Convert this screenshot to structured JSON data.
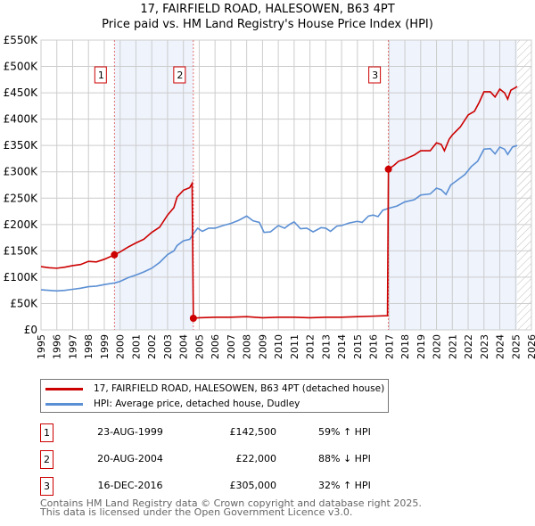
{
  "chart_data": {
    "type": "line",
    "title": "17, FAIRFIELD ROAD, HALESOWEN, B63 4PT",
    "subtitle": "Price paid vs. HM Land Registry's House Price Index (HPI)",
    "xlim": [
      1995,
      2026
    ],
    "ylim": [
      0,
      550000
    ],
    "x_ticks": [
      "1995",
      "1996",
      "1997",
      "1998",
      "1999",
      "2000",
      "2001",
      "2002",
      "2003",
      "2004",
      "2005",
      "2006",
      "2007",
      "2008",
      "2009",
      "2010",
      "2011",
      "2012",
      "2013",
      "2014",
      "2015",
      "2016",
      "2017",
      "2018",
      "2019",
      "2020",
      "2021",
      "2022",
      "2023",
      "2024",
      "2025",
      "2026"
    ],
    "y_ticks": [
      {
        "v": 0,
        "label": "£0"
      },
      {
        "v": 50000,
        "label": "£50K"
      },
      {
        "v": 100000,
        "label": "£100K"
      },
      {
        "v": 150000,
        "label": "£150K"
      },
      {
        "v": 200000,
        "label": "£200K"
      },
      {
        "v": 250000,
        "label": "£250K"
      },
      {
        "v": 300000,
        "label": "£300K"
      },
      {
        "v": 350000,
        "label": "£350K"
      },
      {
        "v": 400000,
        "label": "£400K"
      },
      {
        "v": 450000,
        "label": "£450K"
      },
      {
        "v": 500000,
        "label": "£500K"
      },
      {
        "v": 550000,
        "label": "£550K"
      }
    ],
    "grid": true,
    "shaded_ranges": [
      [
        1999.64,
        2004.63
      ],
      [
        2016.96,
        2025.1
      ]
    ],
    "future_hatch_from": 2025.1,
    "series": [
      {
        "name": "17, FAIRFIELD ROAD, HALESOWEN, B63 4PT (detached house)",
        "color": "#cc0000",
        "points": [
          [
            1995,
            120
          ],
          [
            1995.5,
            118
          ],
          [
            1996,
            117
          ],
          [
            1996.5,
            119
          ],
          [
            1997,
            122
          ],
          [
            1997.5,
            124
          ],
          [
            1998,
            130
          ],
          [
            1998.5,
            129
          ],
          [
            1999,
            134
          ],
          [
            1999.64,
            142.5
          ],
          [
            2000,
            148
          ],
          [
            2000.5,
            157
          ],
          [
            2001,
            165
          ],
          [
            2001.5,
            172
          ],
          [
            2002,
            185
          ],
          [
            2002.5,
            195
          ],
          [
            2003,
            218
          ],
          [
            2003.4,
            232
          ],
          [
            2003.6,
            252
          ],
          [
            2004,
            265
          ],
          [
            2004.4,
            270
          ],
          [
            2004.55,
            278
          ],
          [
            2004.63,
            22
          ],
          [
            2005,
            23
          ],
          [
            2006,
            24
          ],
          [
            2007,
            24
          ],
          [
            2008,
            25
          ],
          [
            2009,
            23
          ],
          [
            2010,
            24
          ],
          [
            2011,
            24
          ],
          [
            2012,
            23
          ],
          [
            2013,
            24
          ],
          [
            2014,
            24
          ],
          [
            2015,
            25
          ],
          [
            2016,
            26
          ],
          [
            2016.9,
            27
          ],
          [
            2016.96,
            305
          ],
          [
            2017.3,
            312
          ],
          [
            2017.6,
            320
          ],
          [
            2018,
            324
          ],
          [
            2018.6,
            332
          ],
          [
            2019,
            340
          ],
          [
            2019.6,
            340
          ],
          [
            2020,
            355
          ],
          [
            2020.3,
            352
          ],
          [
            2020.5,
            340
          ],
          [
            2020.8,
            362
          ],
          [
            2021,
            370
          ],
          [
            2021.5,
            385
          ],
          [
            2022,
            408
          ],
          [
            2022.4,
            415
          ],
          [
            2022.7,
            432
          ],
          [
            2023,
            452
          ],
          [
            2023.4,
            452
          ],
          [
            2023.7,
            442
          ],
          [
            2024,
            457
          ],
          [
            2024.3,
            450
          ],
          [
            2024.5,
            438
          ],
          [
            2024.7,
            455
          ],
          [
            2025,
            460
          ],
          [
            2025.1,
            462
          ]
        ]
      },
      {
        "name": "HPI: Average price, detached house, Dudley",
        "color": "#5b8fd4",
        "points": [
          [
            1995,
            76
          ],
          [
            1995.5,
            75
          ],
          [
            1996,
            74
          ],
          [
            1996.5,
            75
          ],
          [
            1997,
            77
          ],
          [
            1997.5,
            79
          ],
          [
            1998,
            82
          ],
          [
            1998.5,
            83
          ],
          [
            1999,
            86
          ],
          [
            1999.64,
            89
          ],
          [
            2000,
            92
          ],
          [
            2000.5,
            99
          ],
          [
            2001,
            104
          ],
          [
            2001.5,
            110
          ],
          [
            2002,
            117
          ],
          [
            2002.5,
            128
          ],
          [
            2003,
            143
          ],
          [
            2003.4,
            150
          ],
          [
            2003.6,
            160
          ],
          [
            2004,
            169
          ],
          [
            2004.4,
            172
          ],
          [
            2004.63,
            182
          ],
          [
            2004.9,
            193
          ],
          [
            2005.2,
            187
          ],
          [
            2005.6,
            193
          ],
          [
            2006,
            193
          ],
          [
            2006.5,
            198
          ],
          [
            2007,
            202
          ],
          [
            2007.5,
            208
          ],
          [
            2008,
            216
          ],
          [
            2008.4,
            207
          ],
          [
            2008.8,
            204
          ],
          [
            2009.1,
            185
          ],
          [
            2009.5,
            186
          ],
          [
            2010,
            198
          ],
          [
            2010.4,
            193
          ],
          [
            2010.7,
            200
          ],
          [
            2011,
            205
          ],
          [
            2011.4,
            192
          ],
          [
            2011.8,
            193
          ],
          [
            2012.2,
            186
          ],
          [
            2012.7,
            194
          ],
          [
            2013,
            193
          ],
          [
            2013.3,
            187
          ],
          [
            2013.7,
            197
          ],
          [
            2014,
            198
          ],
          [
            2014.5,
            203
          ],
          [
            2015,
            206
          ],
          [
            2015.3,
            204
          ],
          [
            2015.7,
            216
          ],
          [
            2016,
            218
          ],
          [
            2016.3,
            215
          ],
          [
            2016.6,
            227
          ],
          [
            2017,
            231
          ],
          [
            2017.5,
            235
          ],
          [
            2018,
            243
          ],
          [
            2018.6,
            247
          ],
          [
            2019,
            256
          ],
          [
            2019.6,
            258
          ],
          [
            2020,
            269
          ],
          [
            2020.3,
            266
          ],
          [
            2020.6,
            257
          ],
          [
            2020.9,
            275
          ],
          [
            2021.4,
            286
          ],
          [
            2021.8,
            295
          ],
          [
            2022.2,
            310
          ],
          [
            2022.6,
            320
          ],
          [
            2023,
            343
          ],
          [
            2023.4,
            344
          ],
          [
            2023.7,
            334
          ],
          [
            2024,
            347
          ],
          [
            2024.3,
            343
          ],
          [
            2024.5,
            333
          ],
          [
            2024.8,
            347
          ],
          [
            2025.1,
            350
          ]
        ]
      }
    ],
    "sales": [
      {
        "n": "1",
        "year": 1999.64,
        "value": 142.5
      },
      {
        "n": "2",
        "year": 2004.63,
        "value": 22
      },
      {
        "n": "3",
        "year": 2016.96,
        "value": 305
      }
    ]
  },
  "header": {
    "title": "17, FAIRFIELD ROAD, HALESOWEN, B63 4PT",
    "subtitle": "Price paid vs. HM Land Registry's House Price Index (HPI)"
  },
  "legend": {
    "red": "17, FAIRFIELD ROAD, HALESOWEN, B63 4PT (detached house)",
    "blue": "HPI: Average price, detached house, Dudley"
  },
  "transactions": [
    {
      "n": "1",
      "date": "23-AUG-1999",
      "price": "£142,500",
      "hpi": "59% ↑ HPI"
    },
    {
      "n": "2",
      "date": "20-AUG-2004",
      "price": "£22,000",
      "hpi": "88% ↓ HPI"
    },
    {
      "n": "3",
      "date": "16-DEC-2016",
      "price": "£305,000",
      "hpi": "32% ↑ HPI"
    }
  ],
  "footer": {
    "line1": "Contains HM Land Registry data © Crown copyright and database right 2025.",
    "line2": "This data is licensed under the Open Government Licence v3.0."
  }
}
